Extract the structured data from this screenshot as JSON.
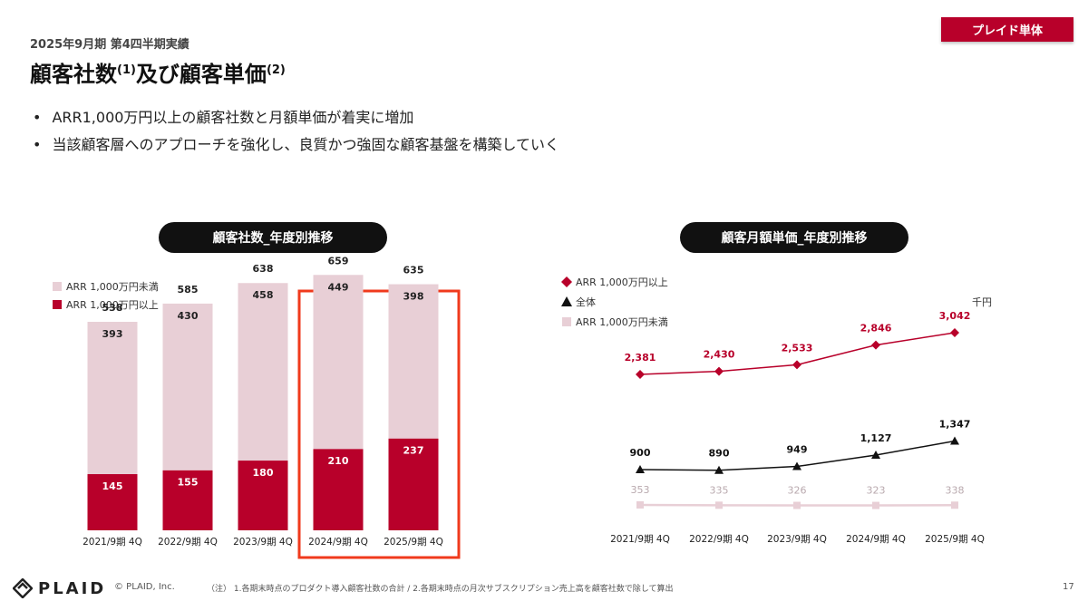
{
  "header": {
    "period": "2025年9月期 第4四半期実績",
    "title": "顧客社数",
    "title_note1": "(1)",
    "title_mid": "及び顧客単価",
    "title_note2": "(2)",
    "badge": "プレイド単体"
  },
  "bullets": [
    "ARR1,000万円以上の顧客社数と月額単価が着実に増加",
    "当該顧客層へのアプローチを強化し、良質かつ強固な顧客基盤を構築していく"
  ],
  "footer": {
    "logo": "PLAID",
    "copyright": "© PLAID, Inc.",
    "note": "（注） 1.各期末時点のプロダクト導入顧客社数の合計 / 2.各期末時点の月次サブスクリプション売上高を顧客社数で除して算出",
    "page": "17"
  },
  "colors": {
    "accent": "#b8002a",
    "light": "#e8cfd6",
    "highlight": "#f03a1c",
    "total_line": "#111111"
  },
  "chart_data": [
    {
      "type": "bar",
      "title": "顧客社数_年度別推移",
      "categories": [
        "2021/9期 4Q",
        "2022/9期 4Q",
        "2023/9期 4Q",
        "2024/9期 4Q",
        "2025/9期 4Q"
      ],
      "series": [
        {
          "name": "ARR 1,000万円以上",
          "values": [
            145,
            155,
            180,
            210,
            237
          ],
          "color": "#b8002a"
        },
        {
          "name": "ARR 1,000万円未満",
          "values": [
            393,
            430,
            458,
            449,
            398
          ],
          "color": "#e8cfd6"
        }
      ],
      "totals": [
        538,
        585,
        638,
        659,
        635
      ],
      "stacked": true,
      "ylim": [
        0,
        700
      ],
      "highlight_categories": [
        "2024/9期 4Q",
        "2025/9期 4Q"
      ]
    },
    {
      "type": "line",
      "title": "顧客月額単価_年度別推移",
      "unit": "千円",
      "categories": [
        "2021/9期 4Q",
        "2022/9期 4Q",
        "2023/9期 4Q",
        "2024/9期 4Q",
        "2025/9期 4Q"
      ],
      "series": [
        {
          "name": "ARR 1,000万円以上",
          "marker": "diamond",
          "values": [
            2381,
            2430,
            2533,
            2846,
            3042
          ],
          "labels": [
            "2,381",
            "2,430",
            "2,533",
            "2,846",
            "3,042"
          ],
          "color": "#b8002a"
        },
        {
          "name": "全体",
          "marker": "triangle",
          "values": [
            900,
            890,
            949,
            1127,
            1347
          ],
          "labels": [
            "900",
            "890",
            "949",
            "1,127",
            "1,347"
          ],
          "color": "#111111"
        },
        {
          "name": "ARR 1,000万円未満",
          "marker": "square",
          "values": [
            353,
            335,
            326,
            323,
            338
          ],
          "labels": [
            "353",
            "335",
            "326",
            "323",
            "338"
          ],
          "color": "#e8cfd6"
        }
      ]
    }
  ]
}
